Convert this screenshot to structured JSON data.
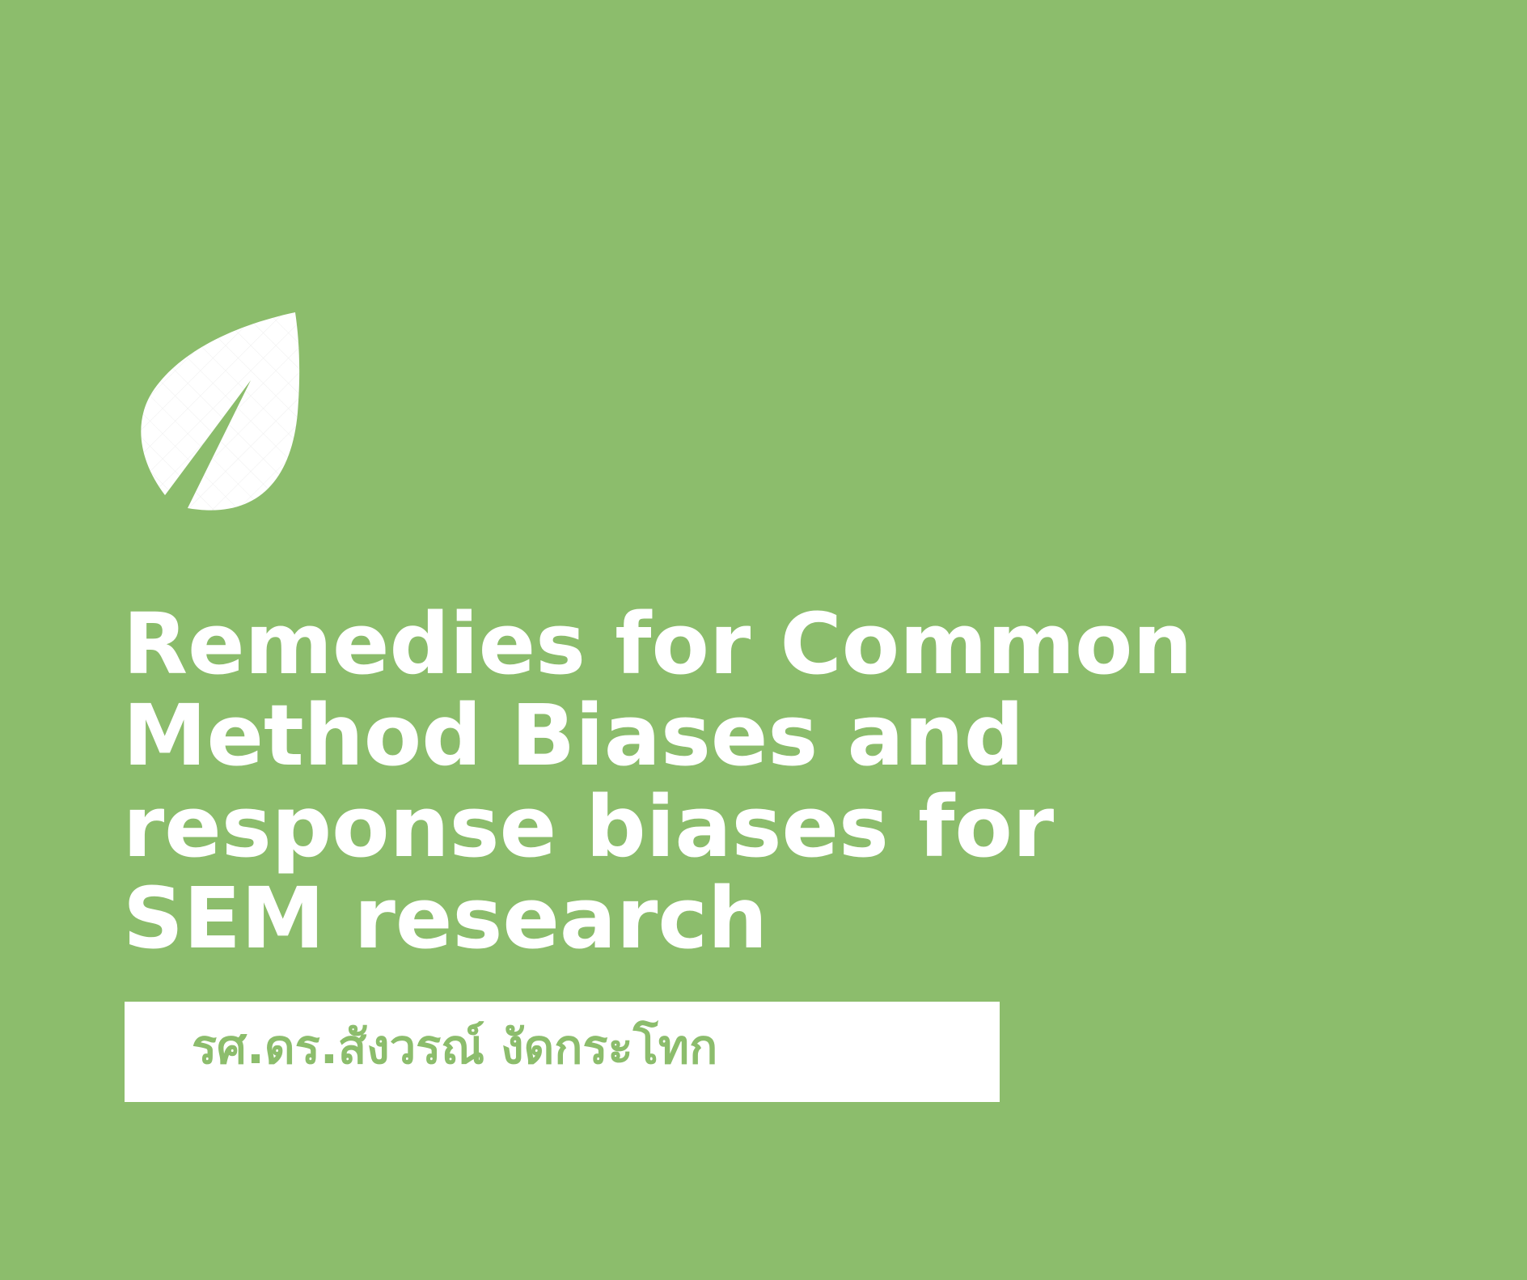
{
  "background_color": "#8cbd6c",
  "icon": {
    "name": "leaf-icon",
    "color": "#ffffff"
  },
  "title": {
    "lines": [
      "Remedies for Common",
      "Method Biases and",
      "response biases for",
      "SEM research"
    ],
    "color": "#ffffff"
  },
  "author": {
    "name": "รศ.ดร.สังวรณ์ งัดกระโทก",
    "text_color": "#8cbd6c",
    "box_color": "#ffffff"
  }
}
